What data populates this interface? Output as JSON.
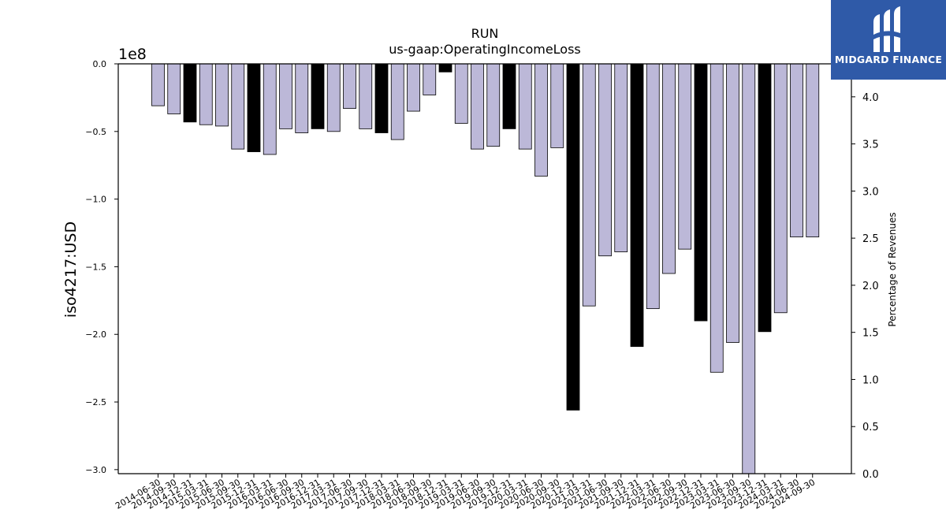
{
  "brand": {
    "name": "MIDGARD FINANCE",
    "accent": "#2f5aa8"
  },
  "chart_data": {
    "type": "bar",
    "title": "RUN",
    "subtitle": "us-gaap:OperatingIncomeLoss",
    "ylabel": "iso4217:USD",
    "y2label": "Percentage of Revenues",
    "offset_text": "1e8",
    "ylim": [
      -3.03,
      0
    ],
    "y_ticks": [
      0.0,
      -0.5,
      -1.0,
      -1.5,
      -2.0,
      -2.5,
      -3.0
    ],
    "y_tick_labels": [
      "0.0",
      "−0.5",
      "−1.0",
      "−1.5",
      "−2.0",
      "−2.5",
      "−3.0"
    ],
    "y2lim": [
      0,
      4.35
    ],
    "y2_ticks": [
      0.0,
      0.5,
      1.0,
      1.5,
      2.0,
      2.5,
      3.0,
      3.5,
      4.0
    ],
    "y2_tick_labels": [
      "0.0",
      "0.5",
      "1.0",
      "1.5",
      "2.0",
      "2.5",
      "3.0",
      "3.5",
      "4.0"
    ],
    "grid": false,
    "colors": {
      "quarter": "#bcb8d8",
      "annual": "#000000",
      "edge": "#000000"
    },
    "categories": [
      "2014-06-30",
      "2014-09-30",
      "2014-12-31",
      "2015-03-31",
      "2015-06-30",
      "2015-09-30",
      "2015-12-31",
      "2016-03-31",
      "2016-06-30",
      "2016-09-30",
      "2016-12-31",
      "2017-03-31",
      "2017-06-30",
      "2017-09-30",
      "2017-12-31",
      "2018-03-31",
      "2018-06-30",
      "2018-09-30",
      "2018-12-31",
      "2019-03-31",
      "2019-06-30",
      "2019-09-30",
      "2019-12-31",
      "2020-03-31",
      "2020-06-30",
      "2020-09-30",
      "2020-12-31",
      "2021-03-31",
      "2021-06-30",
      "2021-09-30",
      "2021-12-31",
      "2022-03-31",
      "2022-06-30",
      "2022-09-30",
      "2022-12-31",
      "2023-03-31",
      "2023-06-30",
      "2023-09-30",
      "2023-12-31",
      "2024-03-31",
      "2024-06-30",
      "2024-09-30"
    ],
    "values": [
      -0.31,
      -0.37,
      -0.43,
      -0.45,
      -0.46,
      -0.63,
      -0.65,
      -0.67,
      -0.48,
      -0.51,
      -0.48,
      -0.5,
      -0.33,
      -0.48,
      -0.51,
      -0.56,
      -0.35,
      -0.23,
      -0.06,
      -0.44,
      -0.63,
      -0.61,
      -0.48,
      -0.63,
      -0.83,
      -0.62,
      -2.56,
      -1.79,
      -1.42,
      -1.39,
      -2.09,
      -1.81,
      -1.55,
      -1.37,
      -1.9,
      -2.28,
      -2.06,
      -3.03,
      -1.98,
      -1.84,
      -1.28,
      -1.28
    ],
    "annual": [
      false,
      false,
      true,
      false,
      false,
      false,
      true,
      false,
      false,
      false,
      true,
      false,
      false,
      false,
      true,
      false,
      false,
      false,
      true,
      false,
      false,
      false,
      true,
      false,
      false,
      false,
      true,
      false,
      false,
      false,
      true,
      false,
      false,
      false,
      true,
      false,
      false,
      false,
      true,
      false,
      false,
      false
    ]
  }
}
